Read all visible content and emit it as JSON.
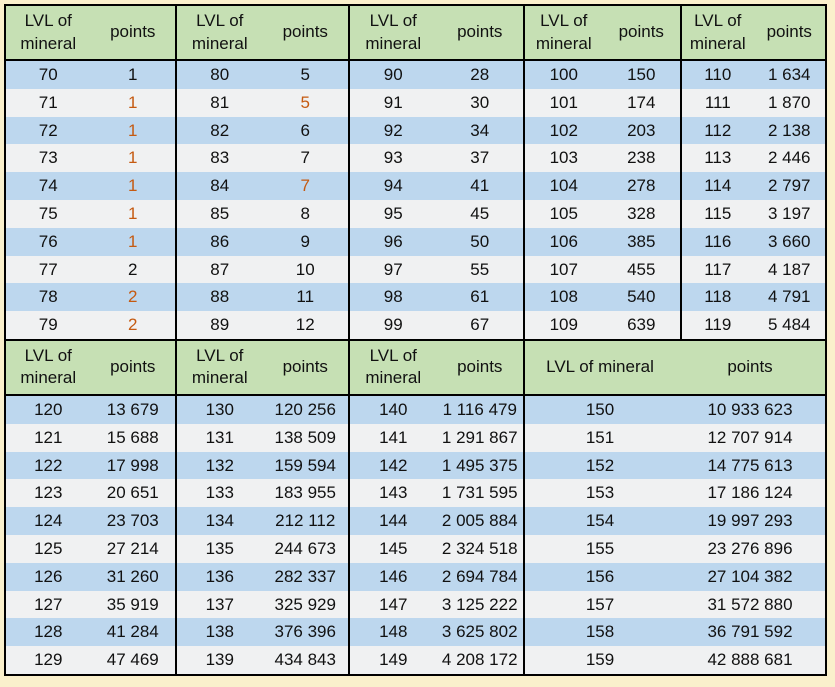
{
  "page": {
    "background_color": "#faf0cc",
    "border_color": "#000000"
  },
  "colors": {
    "header_bg": "#c6e0b4",
    "row_stripe_blue": "#bdd7ee",
    "row_stripe_light": "#f0f1f2",
    "text_default": "#111111",
    "text_highlight_orange": "#c55a11"
  },
  "header": {
    "lvl_label": "LVL of mineral",
    "points_label": "points"
  },
  "chart_data": {
    "type": "table",
    "columns": [
      "LVL of mineral",
      "points"
    ],
    "note_orange_rows": "some point values rendered in orange: levels 71-76,78,79,81,84",
    "sections": [
      {
        "groups": [
          {
            "rows": [
              [
                "70",
                "1",
                0
              ],
              [
                "71",
                "1",
                1
              ],
              [
                "72",
                "1",
                1
              ],
              [
                "73",
                "1",
                1
              ],
              [
                "74",
                "1",
                1
              ],
              [
                "75",
                "1",
                1
              ],
              [
                "76",
                "1",
                1
              ],
              [
                "77",
                "2",
                0
              ],
              [
                "78",
                "2",
                1
              ],
              [
                "79",
                "2",
                1
              ]
            ]
          },
          {
            "rows": [
              [
                "80",
                "5",
                0
              ],
              [
                "81",
                "5",
                1
              ],
              [
                "82",
                "6",
                0
              ],
              [
                "83",
                "7",
                0
              ],
              [
                "84",
                "7",
                1
              ],
              [
                "85",
                "8",
                0
              ],
              [
                "86",
                "9",
                0
              ],
              [
                "87",
                "10",
                0
              ],
              [
                "88",
                "11",
                0
              ],
              [
                "89",
                "12",
                0
              ]
            ]
          },
          {
            "rows": [
              [
                "90",
                "28",
                0
              ],
              [
                "91",
                "30",
                0
              ],
              [
                "92",
                "34",
                0
              ],
              [
                "93",
                "37",
                0
              ],
              [
                "94",
                "41",
                0
              ],
              [
                "95",
                "45",
                0
              ],
              [
                "96",
                "50",
                0
              ],
              [
                "97",
                "55",
                0
              ],
              [
                "98",
                "61",
                0
              ],
              [
                "99",
                "67",
                0
              ]
            ]
          },
          {
            "rows": [
              [
                "100",
                "150",
                0
              ],
              [
                "101",
                "174",
                0
              ],
              [
                "102",
                "203",
                0
              ],
              [
                "103",
                "238",
                0
              ],
              [
                "104",
                "278",
                0
              ],
              [
                "105",
                "328",
                0
              ],
              [
                "106",
                "385",
                0
              ],
              [
                "107",
                "455",
                0
              ],
              [
                "108",
                "540",
                0
              ],
              [
                "109",
                "639",
                0
              ]
            ]
          },
          {
            "rows": [
              [
                "110",
                "1 634",
                0
              ],
              [
                "111",
                "1 870",
                0
              ],
              [
                "112",
                "2 138",
                0
              ],
              [
                "113",
                "2 446",
                0
              ],
              [
                "114",
                "2 797",
                0
              ],
              [
                "115",
                "3 197",
                0
              ],
              [
                "116",
                "3 660",
                0
              ],
              [
                "117",
                "4 187",
                0
              ],
              [
                "118",
                "4 791",
                0
              ],
              [
                "119",
                "5 484",
                0
              ]
            ]
          }
        ]
      },
      {
        "groups": [
          {
            "rows": [
              [
                "120",
                "13 679",
                0
              ],
              [
                "121",
                "15 688",
                0
              ],
              [
                "122",
                "17 998",
                0
              ],
              [
                "123",
                "20 651",
                0
              ],
              [
                "124",
                "23 703",
                0
              ],
              [
                "125",
                "27 214",
                0
              ],
              [
                "126",
                "31 260",
                0
              ],
              [
                "127",
                "35 919",
                0
              ],
              [
                "128",
                "41 284",
                0
              ],
              [
                "129",
                "47 469",
                0
              ]
            ]
          },
          {
            "rows": [
              [
                "130",
                "120 256",
                0
              ],
              [
                "131",
                "138 509",
                0
              ],
              [
                "132",
                "159 594",
                0
              ],
              [
                "133",
                "183 955",
                0
              ],
              [
                "134",
                "212 112",
                0
              ],
              [
                "135",
                "244 673",
                0
              ],
              [
                "136",
                "282 337",
                0
              ],
              [
                "137",
                "325 929",
                0
              ],
              [
                "138",
                "376 396",
                0
              ],
              [
                "139",
                "434 843",
                0
              ]
            ]
          },
          {
            "rows": [
              [
                "140",
                "1 116 479",
                0
              ],
              [
                "141",
                "1 291 867",
                0
              ],
              [
                "142",
                "1 495 375",
                0
              ],
              [
                "143",
                "1 731 595",
                0
              ],
              [
                "144",
                "2 005 884",
                0
              ],
              [
                "145",
                "2 324 518",
                0
              ],
              [
                "146",
                "2 694 784",
                0
              ],
              [
                "147",
                "3 125 222",
                0
              ],
              [
                "148",
                "3 625 802",
                0
              ],
              [
                "149",
                "4 208 172",
                0
              ]
            ]
          },
          {
            "rows": [
              [
                "150",
                "10 933 623",
                0
              ],
              [
                "151",
                "12 707 914",
                0
              ],
              [
                "152",
                "14 775 613",
                0
              ],
              [
                "153",
                "17 186 124",
                0
              ],
              [
                "154",
                "19 997 293",
                0
              ],
              [
                "155",
                "23 276 896",
                0
              ],
              [
                "156",
                "27 104 382",
                0
              ],
              [
                "157",
                "31 572 880",
                0
              ],
              [
                "158",
                "36 791 592",
                0
              ],
              [
                "159",
                "42 888 681",
                0
              ]
            ]
          }
        ]
      }
    ]
  }
}
